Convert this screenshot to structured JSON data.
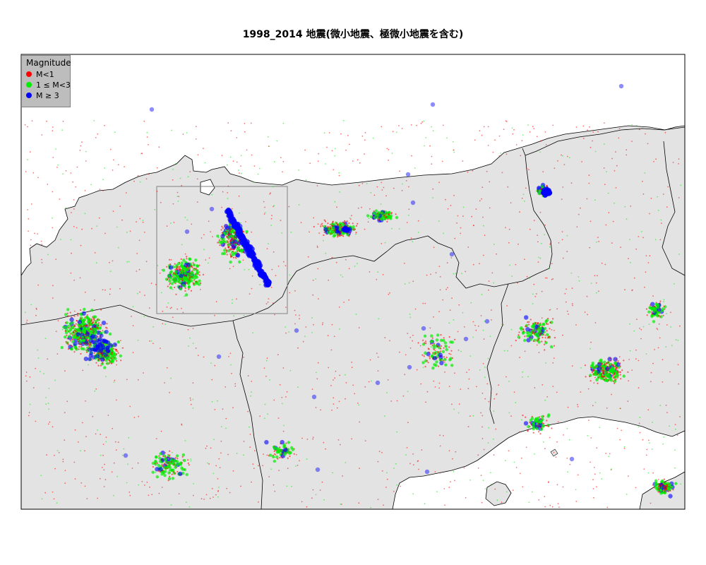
{
  "title": "1998_2014 地震(微小地震、極微小地震を含む)",
  "legend": {
    "title": "Magnitude",
    "items": [
      {
        "label": "M<1",
        "color": "#ff0000"
      },
      {
        "label": "1 ≤ M<3",
        "color": "#00ee00"
      },
      {
        "label": "M ≥ 3",
        "color": "#0000ff"
      }
    ]
  },
  "colors": {
    "land": "#e3e3e3",
    "sea": "#ffffff",
    "boundary": "#000000",
    "frame": "#000000",
    "inset_box": "#808080"
  }
}
